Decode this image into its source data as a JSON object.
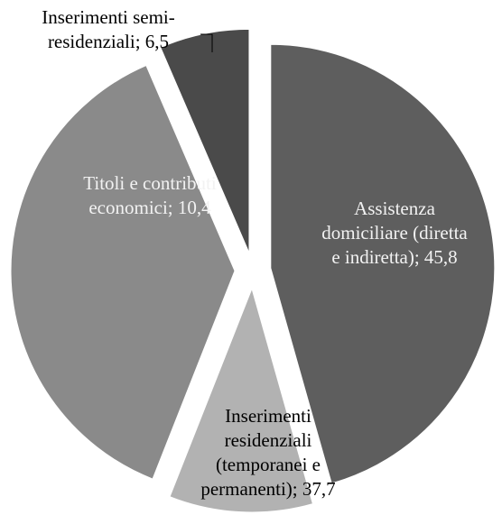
{
  "chart_data": {
    "type": "pie",
    "values": [
      45.8,
      10.4,
      37.7,
      6.5
    ],
    "value_labels": [
      "Assistenza domiciliare (diretta e indiretta); 45,8",
      "Titoli e contributi economici; 10,4",
      "Inserimenti residenziali (temporanei e permanenti); 37,7",
      "Inserimenti semi-residenziali; 6,5"
    ],
    "colors": [
      "#5e5e5e",
      "#b2b2b2",
      "#8a8a8a",
      "#4a4a4a"
    ]
  }
}
